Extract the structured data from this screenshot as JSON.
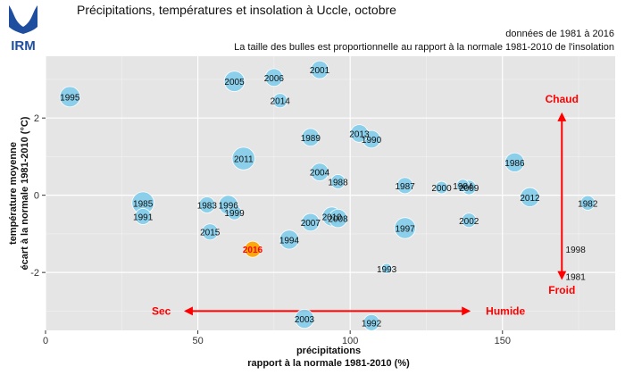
{
  "header": {
    "logo_text": "IRM",
    "title": "Précipitations, températures et insolation à Uccle, octobre",
    "period_note": "données de 1981 à 2016",
    "bubble_note": "La taille des bulles est proportionnelle au rapport à la normale 1981-2010 de l'insolation"
  },
  "colors": {
    "panel": "#e5e5e5",
    "grid": "#ffffff",
    "bubble": "#87ceeb",
    "highlight_bubble": "#ffa500",
    "highlight_text": "#ff0000",
    "annotation": "#ff0000",
    "logo": "#1f4e9e"
  },
  "chart_data": {
    "type": "scatter",
    "xlabel": [
      "précipitations",
      "rapport à la normale 1981-2010 (%)"
    ],
    "ylabel": [
      "température moyenne",
      "écart à la normale 1981-2010 (°C)"
    ],
    "xlim": [
      0,
      187
    ],
    "ylim": [
      -3.5,
      3.6
    ],
    "xticks": [
      0,
      50,
      100,
      150
    ],
    "yticks": [
      -2,
      0,
      2
    ],
    "grid": true,
    "points": [
      {
        "label": "1981",
        "x": 174,
        "y": -2.1,
        "size": 0.3
      },
      {
        "label": "1982",
        "x": 178,
        "y": -0.2,
        "size": 0.8
      },
      {
        "label": "1983",
        "x": 53,
        "y": -0.25,
        "size": 1.0
      },
      {
        "label": "1984",
        "x": 137,
        "y": 0.25,
        "size": 0.6
      },
      {
        "label": "1985",
        "x": 32,
        "y": -0.2,
        "size": 1.9
      },
      {
        "label": "1986",
        "x": 154,
        "y": 0.85,
        "size": 1.4
      },
      {
        "label": "1987",
        "x": 118,
        "y": 0.25,
        "size": 1.0
      },
      {
        "label": "1988",
        "x": 96,
        "y": 0.35,
        "size": 0.8
      },
      {
        "label": "1989",
        "x": 87,
        "y": 1.5,
        "size": 1.2
      },
      {
        "label": "1990",
        "x": 107,
        "y": 1.45,
        "size": 1.2
      },
      {
        "label": "1991",
        "x": 32,
        "y": -0.55,
        "size": 1.0
      },
      {
        "label": "1992",
        "x": 107,
        "y": -3.3,
        "size": 1.0
      },
      {
        "label": "1993",
        "x": 112,
        "y": -1.9,
        "size": 0.4
      },
      {
        "label": "1994",
        "x": 80,
        "y": -1.15,
        "size": 1.4
      },
      {
        "label": "1995",
        "x": 8,
        "y": 2.55,
        "size": 1.6
      },
      {
        "label": "1996",
        "x": 60,
        "y": -0.25,
        "size": 1.4
      },
      {
        "label": "1997",
        "x": 118,
        "y": -0.85,
        "size": 1.7
      },
      {
        "label": "1998",
        "x": 174,
        "y": -1.4,
        "size": 0.3
      },
      {
        "label": "1999",
        "x": 62,
        "y": -0.45,
        "size": 0.8
      },
      {
        "label": "2000",
        "x": 130,
        "y": 0.2,
        "size": 0.6
      },
      {
        "label": "2001",
        "x": 90,
        "y": 3.25,
        "size": 1.2
      },
      {
        "label": "2002",
        "x": 139,
        "y": -0.65,
        "size": 0.8
      },
      {
        "label": "2003",
        "x": 85,
        "y": -3.2,
        "size": 1.4
      },
      {
        "label": "2004",
        "x": 90,
        "y": 0.6,
        "size": 1.2
      },
      {
        "label": "2005",
        "x": 62,
        "y": 2.95,
        "size": 1.6
      },
      {
        "label": "2006",
        "x": 75,
        "y": 3.05,
        "size": 1.2
      },
      {
        "label": "2007",
        "x": 87,
        "y": -0.7,
        "size": 1.2
      },
      {
        "label": "2008",
        "x": 96,
        "y": -0.6,
        "size": 1.3
      },
      {
        "label": "2009",
        "x": 139,
        "y": 0.2,
        "size": 0.8
      },
      {
        "label": "2010",
        "x": 94,
        "y": -0.55,
        "size": 1.4
      },
      {
        "label": "2011",
        "x": 65,
        "y": 0.95,
        "size": 2.0
      },
      {
        "label": "2012",
        "x": 159,
        "y": -0.05,
        "size": 1.4
      },
      {
        "label": "2013",
        "x": 103,
        "y": 1.6,
        "size": 1.2
      },
      {
        "label": "2014",
        "x": 77,
        "y": 2.45,
        "size": 0.8
      },
      {
        "label": "2015",
        "x": 54,
        "y": -0.95,
        "size": 1.0
      },
      {
        "label": "2016",
        "x": 68,
        "y": -1.4,
        "size": 1.0,
        "highlight": true
      }
    ],
    "annotations": {
      "chaud": "Chaud",
      "froid": "Froid",
      "sec": "Sec",
      "humide": "Humide"
    }
  }
}
